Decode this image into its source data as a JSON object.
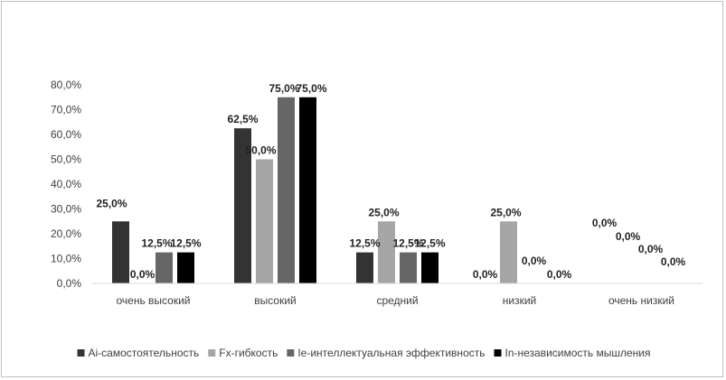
{
  "chart_data": {
    "type": "bar",
    "categories": [
      "очень высокий",
      "высокий",
      "средний",
      "низкий",
      "очень низкий"
    ],
    "series": [
      {
        "name": "Ai-самостоятельность",
        "color": "#333333",
        "values": [
          25.0,
          62.5,
          12.5,
          0.0,
          0.0
        ]
      },
      {
        "name": "Fx-гибкость",
        "color": "#a6a6a6",
        "values": [
          0.0,
          50.0,
          25.0,
          25.0,
          0.0
        ]
      },
      {
        "name": "Ie-интеллектуальная эффективность",
        "color": "#666666",
        "values": [
          12.5,
          75.0,
          12.5,
          0.0,
          0.0
        ]
      },
      {
        "name": "In-независимость мышления",
        "color": "#000000",
        "values": [
          12.5,
          75.0,
          12.5,
          0.0,
          0.0
        ]
      }
    ],
    "data_labels": [
      [
        "25,0%",
        "0,0%",
        "12,5%",
        "12,5%"
      ],
      [
        "62,5%",
        "50,0%",
        "75,0%",
        "75,0%"
      ],
      [
        "12,5%",
        "25,0%",
        "12,5%",
        "12,5%"
      ],
      [
        "0,0%",
        "25,0%",
        "0,0%",
        "0,0%"
      ],
      [
        "0,0%",
        "0,0%",
        "0,0%",
        "0,0%"
      ]
    ],
    "y_ticks": [
      "0,0%",
      "10,0%",
      "20,0%",
      "30,0%",
      "40,0%",
      "50,0%",
      "60,0%",
      "70,0%",
      "80,0%"
    ],
    "ylim": [
      0,
      80
    ],
    "title": "",
    "xlabel": "",
    "ylabel": "",
    "grid": false,
    "legend_position": "bottom"
  }
}
